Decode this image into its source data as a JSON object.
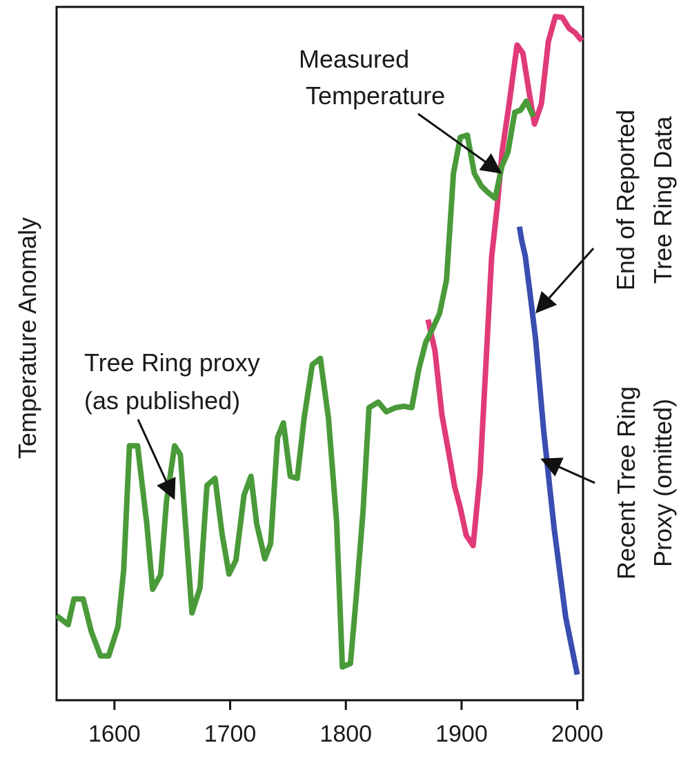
{
  "chart_data": {
    "type": "line",
    "ylabel": "Temperature Anomaly",
    "xlabel": "",
    "xlim": [
      1550,
      2005
    ],
    "ylim": [
      0,
      100
    ],
    "x_ticks": [
      1600,
      1700,
      1800,
      1900,
      2000
    ],
    "y_ticks": [],
    "grid": false,
    "series": [
      {
        "name": "Tree Ring proxy (as published)",
        "color": "#4a9a3a",
        "x": [
          1550,
          1560,
          1565,
          1573,
          1580,
          1588,
          1595,
          1603,
          1608,
          1613,
          1620,
          1628,
          1633,
          1640,
          1645,
          1652,
          1657,
          1662,
          1667,
          1674,
          1680,
          1687,
          1693,
          1699,
          1705,
          1712,
          1718,
          1723,
          1730,
          1735,
          1741,
          1746,
          1752,
          1758,
          1764,
          1771,
          1778,
          1785,
          1792,
          1797,
          1804,
          1809,
          1815,
          1820,
          1828,
          1835,
          1843,
          1850,
          1857,
          1863,
          1869,
          1875,
          1881,
          1887,
          1893,
          1899,
          1905,
          1911,
          1917,
          1923,
          1929,
          1935,
          1940,
          1946,
          1951,
          1956,
          1962
        ],
        "values": [
          12.2,
          10.9,
          14.6,
          14.6,
          9.9,
          6.4,
          6.4,
          10.6,
          18.8,
          36.7,
          36.7,
          25.4,
          16.0,
          18.1,
          28.7,
          36.7,
          35.4,
          24.1,
          12.6,
          16.2,
          31.0,
          32.0,
          24.0,
          18.2,
          20.2,
          29.6,
          32.3,
          25.4,
          20.4,
          22.6,
          37.9,
          40.0,
          32.3,
          32.0,
          40.8,
          48.4,
          49.3,
          40.6,
          25.8,
          4.8,
          5.3,
          14.9,
          27.6,
          42.2,
          43.0,
          41.6,
          42.2,
          42.4,
          42.2,
          47.7,
          51.6,
          53.6,
          55.8,
          60.6,
          76.0,
          81.2,
          81.5,
          76.0,
          74.2,
          73.2,
          72.4,
          77.1,
          79.0,
          84.8,
          85.1,
          86.4,
          84.2
        ]
      },
      {
        "name": "Measured Temperature",
        "color": "#e03a78",
        "x": [
          1871,
          1877,
          1883,
          1889,
          1894,
          1899,
          1904,
          1910,
          1916,
          1921,
          1926,
          1931,
          1935,
          1941,
          1948,
          1953,
          1958,
          1963,
          1969,
          1975,
          1981,
          1987,
          1993,
          1998,
          2004
        ],
        "values": [
          54.9,
          50.4,
          41.2,
          35.6,
          30.8,
          27.7,
          23.8,
          22.3,
          32.7,
          48.2,
          63.9,
          71.5,
          79.0,
          85.9,
          94.5,
          93.3,
          88.1,
          83.1,
          86.0,
          95.0,
          98.6,
          98.5,
          96.9,
          96.3,
          95.1
        ]
      },
      {
        "name": "Recent Tree Ring Proxy (omitted)",
        "color": "#3a4db0",
        "x": [
          1950,
          1952,
          1955,
          1959,
          1964,
          1971,
          1980,
          1990,
          2000
        ],
        "values": [
          68.3,
          66.3,
          64.1,
          58.9,
          52.1,
          38.8,
          24.8,
          12.0,
          3.7
        ]
      }
    ],
    "annotations": [
      {
        "lines": [
          "Measured",
          "Temperature"
        ],
        "points_to": "Measured Temperature"
      },
      {
        "lines": [
          "End of Reported",
          "Tree Ring Data"
        ],
        "points_to": "Tree Ring proxy (as published)"
      },
      {
        "lines": [
          "Tree Ring proxy",
          "(as published)"
        ],
        "points_to": "Tree Ring proxy (as published)"
      },
      {
        "lines": [
          "Recent Tree Ring",
          "Proxy (omitted)"
        ],
        "points_to": "Recent Tree Ring Proxy (omitted)"
      }
    ]
  }
}
